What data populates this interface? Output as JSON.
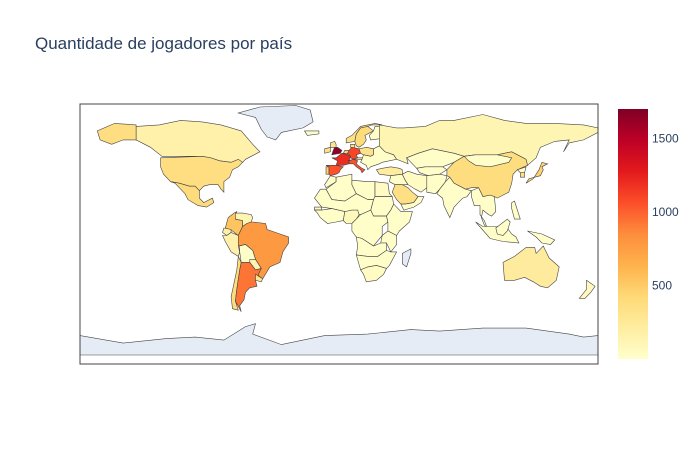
{
  "chart_data": {
    "type": "choropleth",
    "title": "Quantidade de jogadores por país",
    "projection": "equirectangular",
    "colorscale": "YlOrRd",
    "colorscale_stops": [
      "#ffffcc",
      "#ffeda0",
      "#fed976",
      "#feb24c",
      "#fd8d3c",
      "#fc4e2a",
      "#e31a1c",
      "#bd0026",
      "#800026"
    ],
    "colorbar": {
      "range": [
        0,
        1700
      ],
      "ticks": [
        500,
        1000,
        1500
      ],
      "tick_labels": [
        "500",
        "1000",
        "1500"
      ]
    },
    "no_data_color": "#e5ecf6",
    "land_default_value": 15,
    "countries": [
      {
        "name": "England",
        "value": 1650
      },
      {
        "name": "France",
        "value": 1200
      },
      {
        "name": "Germany",
        "value": 1100
      },
      {
        "name": "Italy",
        "value": 1050
      },
      {
        "name": "Spain",
        "value": 1050
      },
      {
        "name": "Argentina",
        "value": 930
      },
      {
        "name": "Brazil",
        "value": 780
      },
      {
        "name": "Colombia",
        "value": 540
      },
      {
        "name": "Portugal",
        "value": 480
      },
      {
        "name": "Netherlands",
        "value": 480
      },
      {
        "name": "United States",
        "value": 370
      },
      {
        "name": "Mexico",
        "value": 400
      },
      {
        "name": "Chile",
        "value": 380
      },
      {
        "name": "Uruguay",
        "value": 300
      },
      {
        "name": "Japan",
        "value": 470
      },
      {
        "name": "Sweden",
        "value": 400
      },
      {
        "name": "Saudi Arabia",
        "value": 360
      },
      {
        "name": "China",
        "value": 380
      },
      {
        "name": "Korea",
        "value": 330
      },
      {
        "name": "Norway",
        "value": 350
      },
      {
        "name": "Poland",
        "value": 330
      },
      {
        "name": "Denmark",
        "value": 340
      },
      {
        "name": "Canada",
        "value": 170
      },
      {
        "name": "Australia",
        "value": 230
      },
      {
        "name": "Ecuador",
        "value": 180
      },
      {
        "name": "Peru",
        "value": 160
      },
      {
        "name": "Russia",
        "value": 120
      },
      {
        "name": "Turkey",
        "value": 220
      },
      {
        "name": "Austria",
        "value": 300
      },
      {
        "name": "Ireland",
        "value": 350
      },
      {
        "name": "Scotland",
        "value": 300
      },
      {
        "name": "Belgium",
        "value": 280
      },
      {
        "name": "Switzerland",
        "value": 250
      },
      {
        "name": "Venezuela",
        "value": 120
      },
      {
        "name": "Paraguay",
        "value": 130
      },
      {
        "name": "Egypt",
        "value": 50
      },
      {
        "name": "Nigeria",
        "value": 80
      },
      {
        "name": "Senegal",
        "value": 90
      },
      {
        "name": "India",
        "value": 20
      },
      {
        "name": "Kazakhstan",
        "value": 20
      },
      {
        "name": "Iran",
        "value": 50
      },
      {
        "name": "South Africa",
        "value": 50
      },
      {
        "name": "New Zealand",
        "value": 70
      }
    ]
  }
}
